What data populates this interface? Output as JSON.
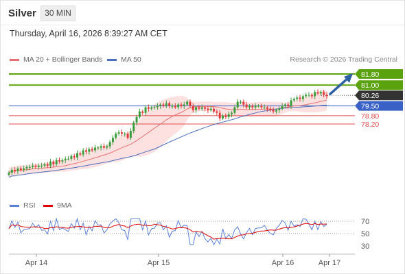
{
  "header": {
    "symbol": "Silver",
    "timeframe": "30 MIN"
  },
  "datetime": "Thursday, April 16, 2026 8:39:27 AM CET",
  "legend": {
    "ma20_label": "MA 20 + Bollinger Bands",
    "ma50_label": "MA 50",
    "credit": "Research © 2026 Trading Central"
  },
  "colors": {
    "bull": "#3a9c3a",
    "bear": "#e23a3a",
    "ma20": "#e87070",
    "ma50": "#4a6fbf",
    "bands": "#fde1e1",
    "resistance": "#5aa30f",
    "pivot": "#3a62c6",
    "support": "#e24b4b",
    "last": "#333333",
    "arrow": "#2d5fa5",
    "rsi": "#5a7fd6",
    "rsi_ma": "#e00000"
  },
  "levels": [
    {
      "value": 81.8,
      "label": "81.80",
      "kind": "resistance"
    },
    {
      "value": 81.0,
      "label": "81.00",
      "kind": "resistance"
    },
    {
      "value": 80.26,
      "label": "80.26",
      "kind": "last"
    },
    {
      "value": 79.5,
      "label": "79.50",
      "kind": "pivot"
    },
    {
      "value": 78.8,
      "label": "78.80",
      "kind": "support"
    },
    {
      "value": 78.2,
      "label": "78.20",
      "kind": "support"
    }
  ],
  "rsi_panel": {
    "rsi_label": "RSI",
    "ma_label": "9MA",
    "ticks": [
      "70",
      "50",
      "30"
    ]
  },
  "x_axis": [
    "Apr 14",
    "Apr 15",
    "Apr 16",
    "Apr 17"
  ],
  "chart_data": {
    "type": "candlestick",
    "title": "Silver",
    "timeframe": "30 MIN",
    "x": [
      "Apr 14",
      "Apr 15",
      "Apr 16",
      "Apr 17"
    ],
    "closes": [
      74.7,
      74.9,
      74.8,
      75.0,
      74.9,
      75.0,
      75.1,
      75.1,
      75.2,
      75.1,
      75.2,
      75.2,
      75.3,
      75.2,
      75.5,
      75.3,
      75.6,
      75.5,
      75.6,
      75.7,
      75.7,
      75.9,
      75.8,
      76.1,
      76.0,
      76.3,
      76.2,
      76.4,
      76.3,
      76.5,
      76.5,
      76.6,
      76.5,
      76.6,
      76.9,
      77.2,
      77.5,
      77.6,
      77.5,
      77.5,
      77.2,
      77.7,
      78.3,
      78.7,
      79.1,
      79.0,
      79.4,
      79.3,
      79.4,
      79.4,
      79.5,
      79.6,
      79.5,
      79.7,
      79.5,
      79.5,
      79.4,
      79.6,
      79.5,
      79.6,
      79.8,
      79.5,
      79.2,
      79.4,
      79.3,
      79.4,
      79.3,
      79.2,
      79.3,
      79.1,
      79.0,
      78.6,
      78.8,
      78.7,
      78.9,
      79.0,
      79.4,
      79.8,
      79.8,
      79.6,
      79.4,
      79.5,
      79.4,
      79.5,
      79.5,
      79.4,
      79.4,
      79.3,
      79.2,
      79.1,
      79.2,
      79.3,
      79.5,
      79.6,
      79.5,
      79.9,
      80.0,
      80.1,
      80.0,
      80.2,
      80.3,
      80.3,
      80.2,
      80.5,
      80.4,
      80.5,
      80.3,
      80.2
    ],
    "last": 80.26,
    "resistances": [
      81.8,
      81.0
    ],
    "pivot": 79.5,
    "supports": [
      78.8,
      78.2
    ],
    "rsi_range": [
      30,
      70
    ]
  }
}
